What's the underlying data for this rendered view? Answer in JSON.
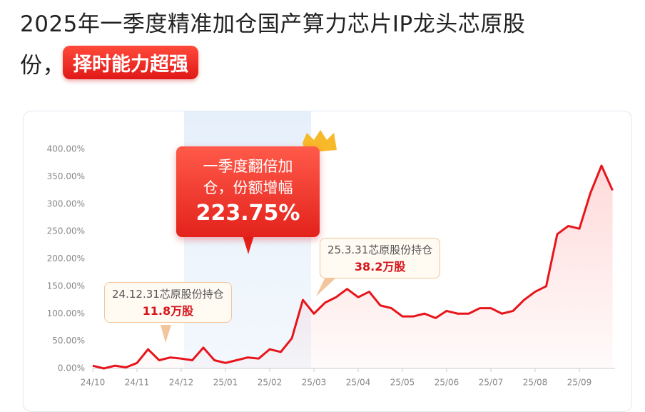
{
  "header": {
    "title_lines": [
      "2025年一季度精准加仓国产算力芯片IP龙头芯原股",
      "份，"
    ],
    "badge": "择时能力超强"
  },
  "chart_data": {
    "type": "line",
    "categories": [
      "24/10",
      null,
      null,
      null,
      "24/11",
      null,
      null,
      null,
      "24/12",
      null,
      null,
      null,
      "25/01",
      null,
      null,
      null,
      "25/02",
      null,
      null,
      null,
      "25/03",
      null,
      null,
      null,
      "25/04",
      null,
      null,
      null,
      "25/05",
      null,
      null,
      null,
      "25/06",
      null,
      null,
      null,
      "25/07",
      null,
      null,
      null,
      "25/08",
      null,
      null,
      null,
      "25/09",
      null,
      null,
      null
    ],
    "series": [
      {
        "color": "#e8141b",
        "values": [
          5,
          0,
          5,
          2,
          10,
          35,
          15,
          20,
          18,
          15,
          38,
          15,
          10,
          15,
          20,
          18,
          35,
          30,
          55,
          125,
          100,
          120,
          130,
          145,
          130,
          140,
          115,
          110,
          95,
          95,
          100,
          92,
          105,
          100,
          100,
          110,
          110,
          100,
          105,
          125,
          140,
          150,
          245,
          260,
          255,
          320,
          370,
          325
        ]
      }
    ],
    "ylim": [
      0,
      400
    ],
    "yticks": [
      {
        "value": 0,
        "label": "0.00%"
      },
      {
        "value": 50,
        "label": "50.00%"
      },
      {
        "value": 100,
        "label": "100.00%"
      },
      {
        "value": 150,
        "label": "150.00%"
      },
      {
        "value": 200,
        "label": "200.00%"
      },
      {
        "value": 250,
        "label": "250.00%"
      },
      {
        "value": 300,
        "label": "300.00%"
      },
      {
        "value": 350,
        "label": "350.00%"
      },
      {
        "value": 400,
        "label": "400.00%"
      }
    ],
    "grid": false,
    "annotations": [
      {
        "lines": [
          "一季度翻倍加",
          "仓，份额增幅"
        ],
        "value_label": "223.75%"
      },
      {
        "lines": [
          "24.12.31芯原股份持仓"
        ],
        "value_label": "11.8万股"
      },
      {
        "lines": [
          "25.3.31芯原股份持仓"
        ],
        "value_label": "38.2万股"
      }
    ]
  }
}
